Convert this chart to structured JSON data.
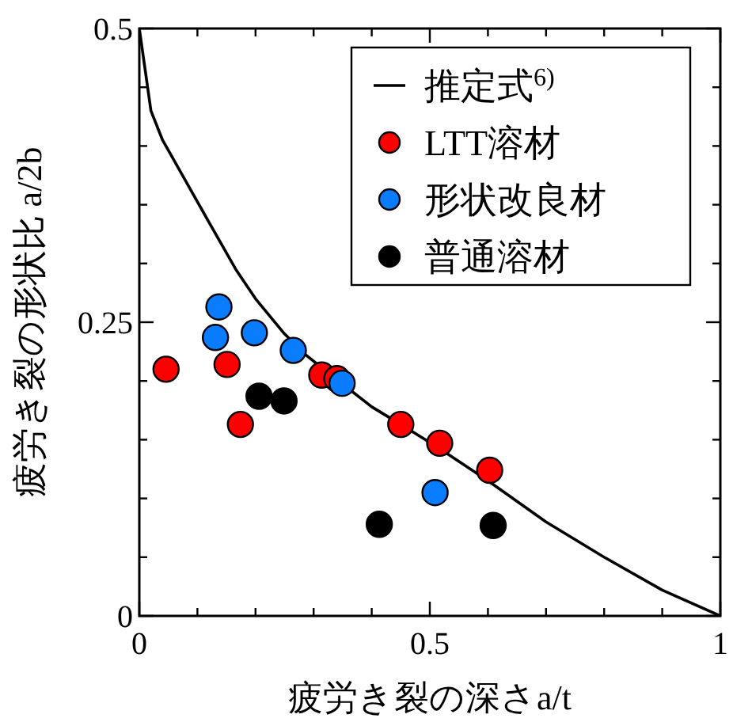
{
  "chart_data": {
    "type": "scatter",
    "xlabel": "疲労き裂の深さa/t",
    "ylabel": "疲労き裂の形状比 a/2b",
    "xlim": [
      0,
      1
    ],
    "ylim": [
      0,
      0.5
    ],
    "xticks": [
      0,
      {
        "value": 0.1,
        "label": null
      },
      {
        "value": 0.2,
        "label": null
      },
      {
        "value": 0.3,
        "label": null
      },
      {
        "value": 0.4,
        "label": null
      },
      0.5,
      {
        "value": 0.6,
        "label": null
      },
      {
        "value": 0.7,
        "label": null
      },
      {
        "value": 0.8,
        "label": null
      },
      {
        "value": 0.9,
        "label": null
      },
      1
    ],
    "yticks": [
      0,
      {
        "value": 0.05,
        "label": null
      },
      {
        "value": 0.1,
        "label": null
      },
      {
        "value": 0.15,
        "label": null
      },
      {
        "value": 0.2,
        "label": null
      },
      0.25,
      {
        "value": 0.3,
        "label": null
      },
      {
        "value": 0.35,
        "label": null
      },
      {
        "value": 0.4,
        "label": null
      },
      {
        "value": 0.45,
        "label": null
      },
      0.5
    ],
    "legend": "top right",
    "grid": false,
    "series": [
      {
        "name": "推定式$^{6)}$",
        "type": "line",
        "color": "#000000",
        "line_style": "solid",
        "x": [
          0,
          0.02,
          0.04,
          0.08,
          0.12,
          0.166,
          0.2,
          0.25,
          0.287,
          0.33,
          0.4,
          0.45,
          0.515,
          0.6,
          0.7,
          0.8,
          0.9,
          1
        ],
        "values": [
          0.5,
          0.43,
          0.405,
          0.37,
          0.335,
          0.295,
          0.27,
          0.24,
          0.222,
          0.205,
          0.178,
          0.163,
          0.143,
          0.115,
          0.08,
          0.05,
          0.022,
          0
        ]
      },
      {
        "name": "LTT溶材",
        "color": "#ff0000",
        "marker": "circle",
        "x": [
          0.046,
          0.151,
          0.174,
          0.314,
          0.34,
          0.45,
          0.517,
          0.603
        ],
        "values": [
          0.21,
          0.214,
          0.163,
          0.205,
          0.202,
          0.163,
          0.147,
          0.124
        ]
      },
      {
        "name": "形状改良材",
        "color": "#0a7cff",
        "marker": "circle",
        "x": [
          0.137,
          0.131,
          0.198,
          0.265,
          0.349,
          0.509
        ],
        "values": [
          0.263,
          0.237,
          0.241,
          0.226,
          0.198,
          0.105
        ]
      },
      {
        "name": "普通溶材",
        "color": "#000000",
        "marker": "circle",
        "x": [
          0.206,
          0.249,
          0.413,
          0.609
        ],
        "values": [
          0.187,
          0.183,
          0.078,
          0.077
        ]
      }
    ]
  }
}
